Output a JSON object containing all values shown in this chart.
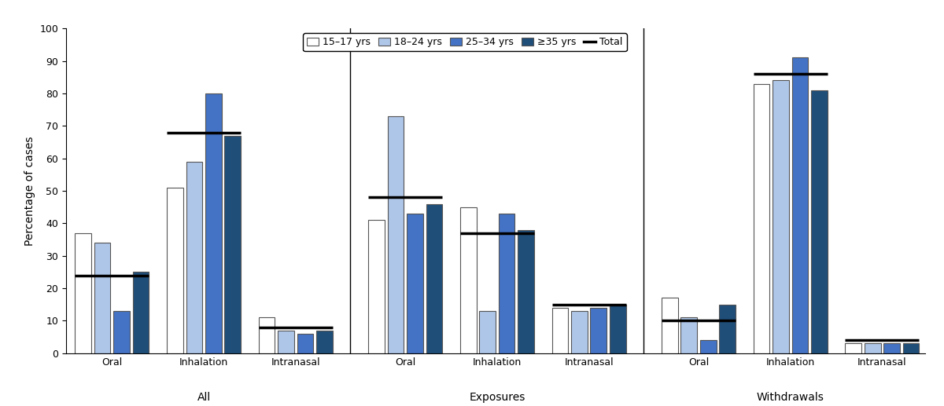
{
  "groups": [
    {
      "label": "All",
      "subgroups": [
        {
          "name": "Oral",
          "vals": [
            37,
            34,
            13,
            25
          ],
          "total": 24
        },
        {
          "name": "Inhalation",
          "vals": [
            51,
            59,
            80,
            67
          ],
          "total": 68
        },
        {
          "name": "Intranasal",
          "vals": [
            11,
            7,
            6,
            7
          ],
          "total": 8
        }
      ]
    },
    {
      "label": "Exposures",
      "subgroups": [
        {
          "name": "Oral",
          "vals": [
            41,
            73,
            43,
            46
          ],
          "total": 48
        },
        {
          "name": "Inhalation",
          "vals": [
            45,
            13,
            43,
            38
          ],
          "total": 37
        },
        {
          "name": "Intranasal",
          "vals": [
            14,
            13,
            14,
            15
          ],
          "total": 15
        }
      ]
    },
    {
      "label": "Withdrawals",
      "subgroups": [
        {
          "name": "Oral",
          "vals": [
            17,
            11,
            4,
            15
          ],
          "total": 10
        },
        {
          "name": "Inhalation",
          "vals": [
            83,
            84,
            91,
            81
          ],
          "total": 86
        },
        {
          "name": "Intranasal",
          "vals": [
            3,
            3,
            3,
            3
          ],
          "total": 4
        }
      ]
    }
  ],
  "age_labels": [
    "15–17 yrs",
    "18–24 yrs",
    "25–34 yrs",
    "≥35 yrs"
  ],
  "bar_colors": [
    "#ffffff",
    "#aec6e8",
    "#4472c4",
    "#1f4e79"
  ],
  "bar_edgecolor": "#555555",
  "total_linecolor": "#000000",
  "ylabel": "Percentage of cases",
  "ylim": [
    0,
    100
  ],
  "yticks": [
    0,
    10,
    20,
    30,
    40,
    50,
    60,
    70,
    80,
    90,
    100
  ],
  "figsize": [
    12.0,
    5.17
  ],
  "dpi": 100,
  "background_color": "#ffffff"
}
